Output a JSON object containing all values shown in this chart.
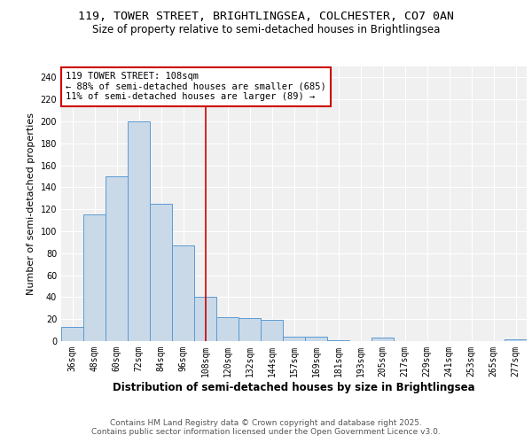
{
  "title1": "119, TOWER STREET, BRIGHTLINGSEA, COLCHESTER, CO7 0AN",
  "title2": "Size of property relative to semi-detached houses in Brightlingsea",
  "xlabel": "Distribution of semi-detached houses by size in Brightlingsea",
  "ylabel": "Number of semi-detached properties",
  "categories": [
    "36sqm",
    "48sqm",
    "60sqm",
    "72sqm",
    "84sqm",
    "96sqm",
    "108sqm",
    "120sqm",
    "132sqm",
    "144sqm",
    "157sqm",
    "169sqm",
    "181sqm",
    "193sqm",
    "205sqm",
    "217sqm",
    "229sqm",
    "241sqm",
    "253sqm",
    "265sqm",
    "277sqm"
  ],
  "values": [
    13,
    115,
    150,
    200,
    125,
    87,
    40,
    22,
    21,
    19,
    4,
    4,
    1,
    0,
    3,
    0,
    0,
    0,
    0,
    0,
    2
  ],
  "bar_color": "#c9d9e8",
  "bar_edge_color": "#5b9bd5",
  "highlight_index": 6,
  "highlight_line_color": "#cc0000",
  "annotation_line1": "119 TOWER STREET: 108sqm",
  "annotation_line2": "← 88% of semi-detached houses are smaller (685)",
  "annotation_line3": "11% of semi-detached houses are larger (89) →",
  "annotation_box_color": "#cc0000",
  "ylim": [
    0,
    250
  ],
  "yticks": [
    0,
    20,
    40,
    60,
    80,
    100,
    120,
    140,
    160,
    180,
    200,
    220,
    240
  ],
  "footer": "Contains HM Land Registry data © Crown copyright and database right 2025.\nContains public sector information licensed under the Open Government Licence v3.0.",
  "title1_fontsize": 9.5,
  "title2_fontsize": 8.5,
  "ylabel_fontsize": 8,
  "xlabel_fontsize": 8.5,
  "tick_fontsize": 7,
  "footer_fontsize": 6.5,
  "annot_fontsize": 7.5,
  "background_color": "#f0f0f0"
}
